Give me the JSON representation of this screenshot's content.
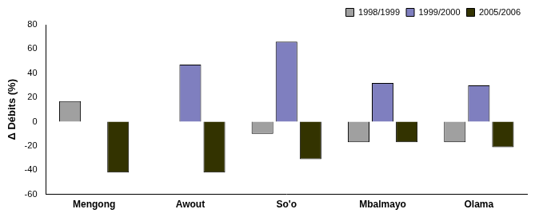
{
  "chart_data": {
    "type": "bar",
    "y_label": "Δ Débits (%)",
    "categories": [
      "Mengong",
      "Awout",
      "So'o",
      "Mbalmayo",
      "Olama"
    ],
    "series": [
      {
        "name": "1998/1999",
        "color": "#a0a0a0",
        "values": [
          17,
          null,
          -10,
          -17,
          -17
        ]
      },
      {
        "name": "1999/2000",
        "color": "#7f7fbf",
        "values": [
          null,
          47,
          66,
          32,
          30
        ]
      },
      {
        "name": "2005/2006",
        "color": "#333300",
        "values": [
          -42,
          -42,
          -31,
          -17,
          -21
        ]
      }
    ],
    "ylim": [
      -60,
      80
    ],
    "yticks": [
      -60,
      -40,
      -20,
      0,
      20,
      40,
      60,
      80
    ],
    "grid": false,
    "legend": "top-right"
  }
}
